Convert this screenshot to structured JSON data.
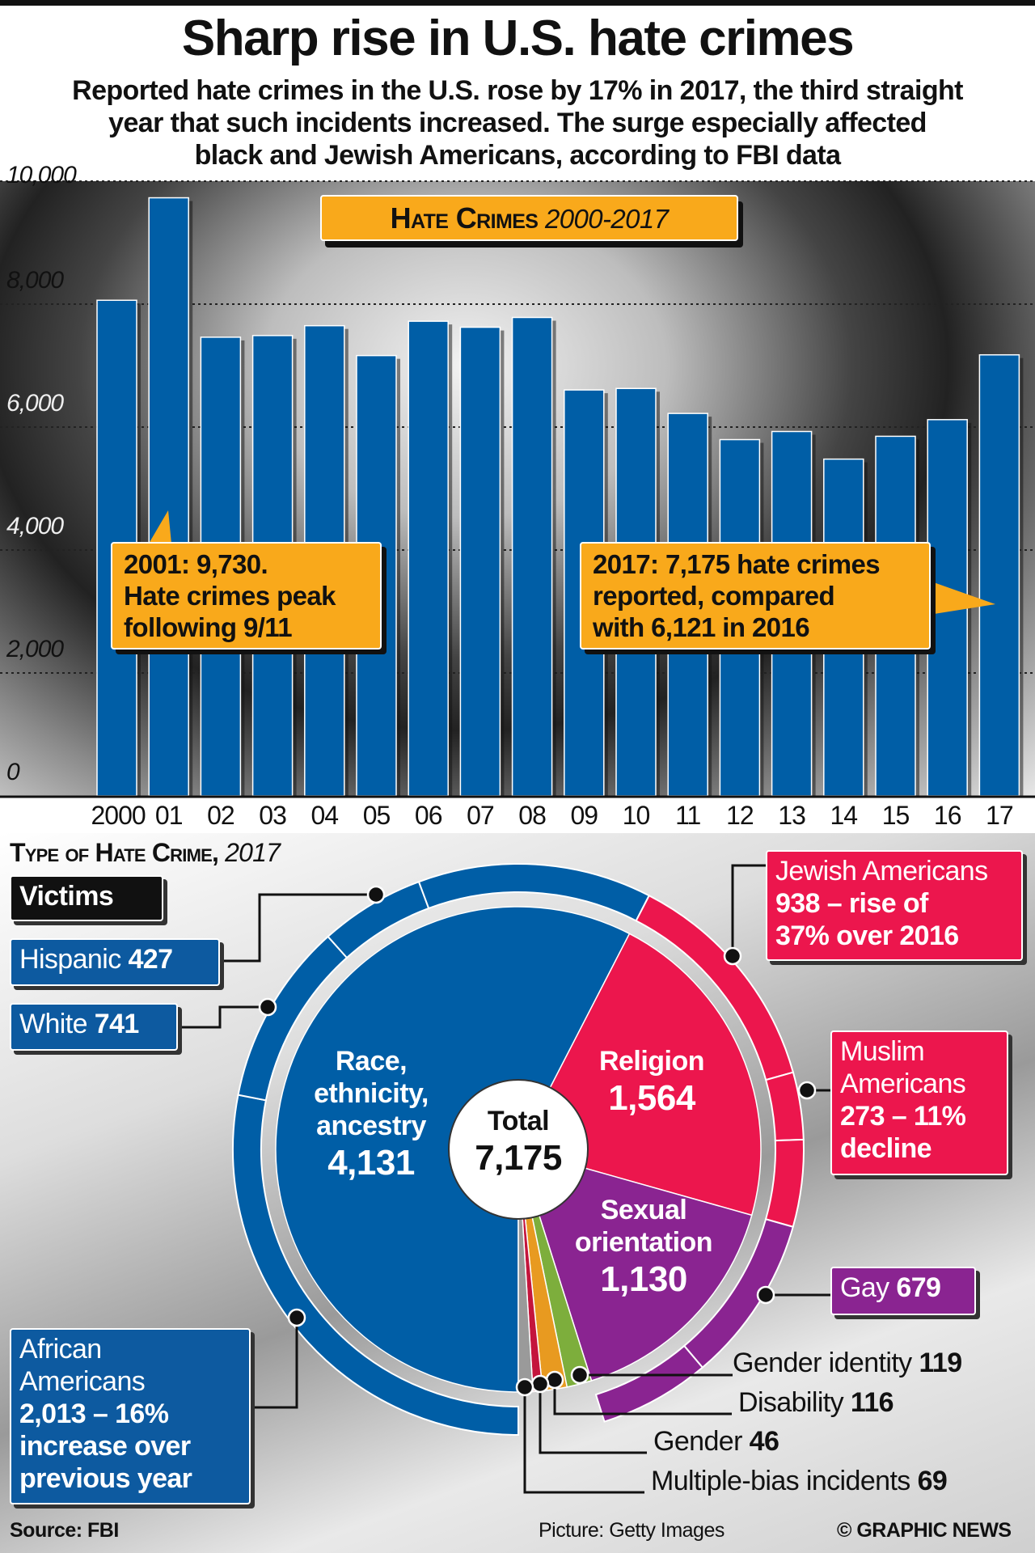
{
  "title": "Sharp rise in U.S. hate crimes",
  "subtitle": [
    "Reported hate crimes in the U.S. rose by 17% in 2017, the third straight",
    "year that such incidents increased. The surge especially affected",
    "black and Jewish Americans, according to FBI data"
  ],
  "colors": {
    "bar": "#005ea6",
    "callout": "#f9a91b",
    "race": "#005ea6",
    "religion": "#ec164d",
    "sexual_orientation": "#8a2491",
    "gender_identity": "#7dae3c",
    "disability": "#e89a20",
    "gender": "#c4153c",
    "multiple": "#9a9a9a"
  },
  "chart_data": [
    {
      "type": "bar",
      "title": "Hate Crimes 2000-2017",
      "title_main": "Hate Crimes",
      "title_years": "2000-2017",
      "categories": [
        "2000",
        "01",
        "02",
        "03",
        "04",
        "05",
        "06",
        "07",
        "08",
        "09",
        "10",
        "11",
        "12",
        "13",
        "14",
        "15",
        "16",
        "17"
      ],
      "values": [
        8063,
        9730,
        7462,
        7489,
        7649,
        7163,
        7722,
        7624,
        7783,
        6604,
        6628,
        6222,
        5796,
        5928,
        5479,
        5850,
        6121,
        7175
      ],
      "ylim": [
        0,
        10000
      ],
      "yticks": [
        "0",
        "2,000",
        "4,000",
        "6,000",
        "8,000",
        "10,000"
      ],
      "grid": "dotted horizontal",
      "annotations": [
        {
          "text": [
            "2001: 9,730.",
            "Hate crimes peak",
            "following 9/11"
          ]
        },
        {
          "text": [
            "2017: 7,175 hate crimes",
            "reported, compared",
            "with 6,121 in 2016"
          ]
        }
      ]
    },
    {
      "type": "pie",
      "title_main": "Type of Hate Crime",
      "title_year": "2017",
      "total_label": "Total",
      "total": "7,175",
      "slices": [
        {
          "label": "Race, ethnicity, ancestry",
          "value": 4131,
          "value_text": "4,131",
          "color": "#005ea6"
        },
        {
          "label": "Religion",
          "value": 1564,
          "value_text": "1,564",
          "color": "#ec164d"
        },
        {
          "label": "Sexual orientation",
          "value": 1130,
          "value_text": "1,130",
          "color": "#8a2491"
        },
        {
          "label": "Gender identity",
          "value": 119,
          "value_text": "119",
          "color": "#7dae3c"
        },
        {
          "label": "Disability",
          "value": 116,
          "value_text": "116",
          "color": "#e89a20"
        },
        {
          "label": "Gender",
          "value": 46,
          "value_text": "46",
          "color": "#c4153c"
        },
        {
          "label": "Multiple-bias incidents",
          "value": 69,
          "value_text": "69",
          "color": "#9a9a9a"
        }
      ],
      "victims_heading": "Victims",
      "victims": [
        {
          "group": "African Americans",
          "value": 2013,
          "text": [
            "African",
            "Americans"
          ],
          "detail": [
            "2,013 – 16%",
            "increase over",
            "previous year"
          ],
          "parent": "race"
        },
        {
          "group": "White",
          "value": 741,
          "value_text": "741",
          "parent": "race"
        },
        {
          "group": "Hispanic",
          "value": 427,
          "value_text": "427",
          "parent": "race"
        },
        {
          "group": "Jewish Americans",
          "value": 938,
          "text": [
            "Jewish Americans"
          ],
          "detail": [
            "938 – rise of",
            "37% over 2016"
          ],
          "parent": "religion"
        },
        {
          "group": "Muslim Americans",
          "value": 273,
          "text": [
            "Muslim",
            "Americans"
          ],
          "detail": [
            "273 – 11%",
            "decline"
          ],
          "parent": "religion"
        },
        {
          "group": "Gay",
          "value": 679,
          "value_text": "679",
          "parent": "sexual_orientation"
        }
      ]
    }
  ],
  "footer": {
    "source": "Source: FBI",
    "picture": "Picture: Getty Images",
    "credit": "© GRAPHIC NEWS"
  }
}
